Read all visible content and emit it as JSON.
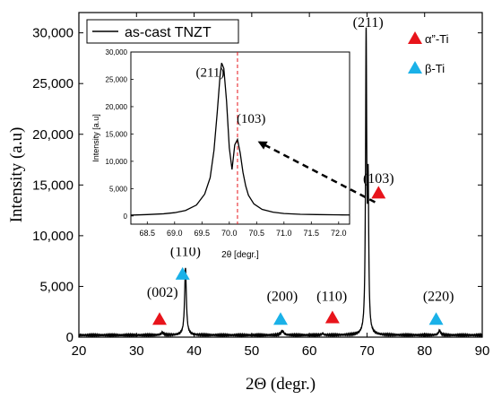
{
  "chart_data": [
    {
      "type": "line",
      "title": "",
      "xlabel": "2Θ (degr.)",
      "ylabel": "Intensity (a.u)",
      "xlim": [
        20,
        90
      ],
      "ylim": [
        0,
        32000
      ],
      "xticks": [
        20,
        30,
        40,
        50,
        60,
        70,
        80,
        90
      ],
      "yticks": [
        0,
        5000,
        10000,
        15000,
        20000,
        25000,
        30000
      ],
      "ytick_labels": [
        "0",
        "5,000",
        "10,000",
        "15,000",
        "20,000",
        "25,000",
        "30,000"
      ],
      "grid": false,
      "legend_position": "top-left",
      "series": [
        {
          "name": "as-cast TNZT",
          "color": "#000000",
          "baseline": 200,
          "peaks": [
            {
              "x": 34.5,
              "y": 450
            },
            {
              "x": 38.5,
              "y": 6800
            },
            {
              "x": 55.3,
              "y": 600
            },
            {
              "x": 62.3,
              "y": 350
            },
            {
              "x": 69.85,
              "y": 29200
            },
            {
              "x": 70.2,
              "y": 14000
            },
            {
              "x": 82.6,
              "y": 650
            }
          ]
        }
      ],
      "markers": [
        {
          "label": "α”-Ti",
          "color": "#e8141b",
          "shape": "triangle"
        },
        {
          "label": "β-Ti",
          "color": "#1ab1e8",
          "shape": "triangle"
        }
      ],
      "annotations": [
        {
          "text": "(002)",
          "x": 34.5,
          "y": 4000,
          "phase": "alpha"
        },
        {
          "text": "(110)",
          "x": 38.5,
          "y": 8000,
          "phase": "beta"
        },
        {
          "text": "(200)",
          "x": 55.3,
          "y": 3600,
          "phase": "beta"
        },
        {
          "text": "(110)",
          "x": 63.9,
          "y": 3600,
          "phase": "alpha"
        },
        {
          "text": "(211)",
          "x": 70.2,
          "y": 30600,
          "phase": ""
        },
        {
          "text": "(103)",
          "x": 72.0,
          "y": 15200,
          "phase": "alpha"
        },
        {
          "text": "(220)",
          "x": 82.4,
          "y": 3600,
          "phase": "beta"
        }
      ],
      "triangles": [
        {
          "x": 34.0,
          "y": 1750,
          "phase": "alpha"
        },
        {
          "x": 38.0,
          "y": 6200,
          "phase": "beta"
        },
        {
          "x": 55.0,
          "y": 1750,
          "phase": "beta"
        },
        {
          "x": 64.0,
          "y": 1900,
          "phase": "alpha"
        },
        {
          "x": 72.0,
          "y": 14200,
          "phase": "alpha"
        },
        {
          "x": 82.0,
          "y": 1750,
          "phase": "beta"
        }
      ]
    },
    {
      "type": "line",
      "title": "",
      "xlabel": "2θ [degr.]",
      "ylabel": "Intensity [a.u]",
      "xlim": [
        68.2,
        72.2
      ],
      "ylim": [
        -1500,
        30000
      ],
      "xticks": [
        68.5,
        69.0,
        69.5,
        70.0,
        70.5,
        71.0,
        71.5,
        72.0
      ],
      "xtick_labels": [
        "68.5",
        "69.0",
        "69.5",
        "70.0",
        "70.5",
        "71.0",
        "71.5",
        "72.0"
      ],
      "yticks": [
        0,
        5000,
        10000,
        15000,
        20000,
        25000,
        30000
      ],
      "ytick_labels": [
        "0",
        "5,000",
        "10,000",
        "15,000",
        "20,000",
        "25,000",
        "30,000"
      ],
      "grid": false,
      "series": [
        {
          "name": "",
          "color": "#000000",
          "x": [
            68.2,
            68.5,
            68.8,
            69.0,
            69.2,
            69.4,
            69.55,
            69.65,
            69.72,
            69.78,
            69.83,
            69.86,
            69.9,
            69.95,
            70.0,
            70.05,
            70.1,
            70.15,
            70.2,
            70.25,
            70.3,
            70.35,
            70.45,
            70.6,
            70.8,
            71.0,
            71.3,
            71.6,
            72.0,
            72.2
          ],
          "y": [
            150,
            250,
            400,
            600,
            1000,
            2000,
            4000,
            7000,
            12000,
            19000,
            25500,
            28000,
            27000,
            21000,
            12500,
            8500,
            13000,
            14000,
            11500,
            8000,
            5500,
            3800,
            2200,
            1200,
            700,
            450,
            300,
            250,
            200,
            180
          ]
        }
      ],
      "reference_line": {
        "x": 70.15,
        "color": "#e8141b",
        "style": "dashed"
      },
      "annotations": [
        {
          "text": "(211)",
          "x": 69.65,
          "y": 25500
        },
        {
          "text": "(103)",
          "x": 70.4,
          "y": 17000
        }
      ]
    }
  ],
  "arrow": {
    "from_peak": "(103)",
    "to": "inset",
    "style": "dashed"
  }
}
